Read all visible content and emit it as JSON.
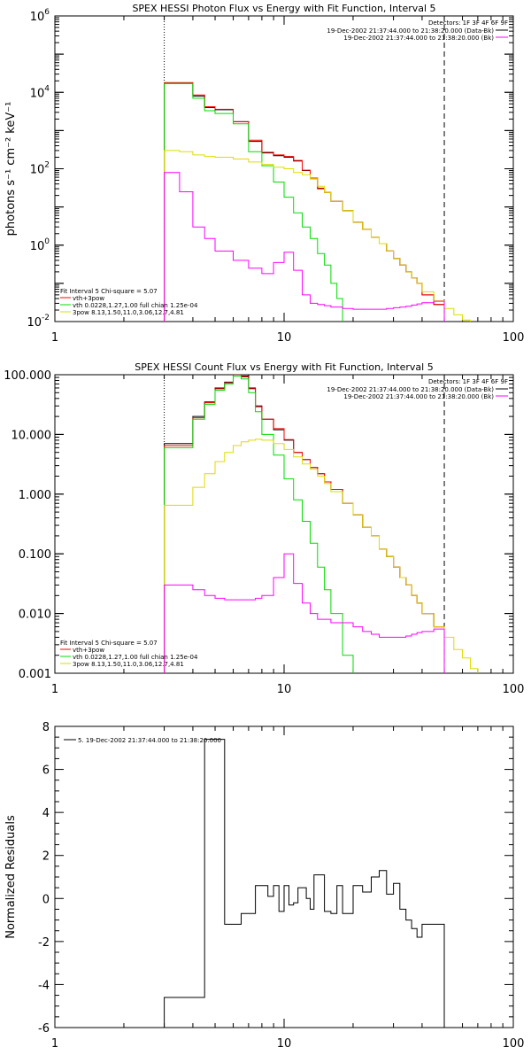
{
  "chart_data": [
    {
      "type": "line",
      "title": "SPEX HESSI Photon Flux vs Energy with Fit Function, Interval 5",
      "xlabel": "",
      "ylabel": "photons s⁻¹ cm⁻² keV⁻¹",
      "x_scale": "log",
      "y_scale": "log",
      "xlim": [
        1,
        100
      ],
      "ylim": [
        0.01,
        1000000
      ],
      "x_ticks": [
        "1",
        "10",
        "100"
      ],
      "y_ticks": [
        {
          "base": "10",
          "exp": "-2",
          "value": 0.01
        },
        {
          "base": "10",
          "exp": "0",
          "value": 1
        },
        {
          "base": "10",
          "exp": "2",
          "value": 100
        },
        {
          "base": "10",
          "exp": "4",
          "value": 10000
        },
        {
          "base": "10",
          "exp": "6",
          "value": 1000000
        }
      ],
      "legend_top": {
        "detectors": "Detectors: 1F 3F 4F 6F 9F",
        "entries": [
          {
            "label": "19-Dec-2002 21:37:44.000 to 21:38:20.000 (Data-Bk)",
            "color": "#000000"
          },
          {
            "label": "19-Dec-2002 21:37:44.000 to 21:38:20.000 (Bk)",
            "color": "#ff00ff"
          }
        ]
      },
      "legend_bottom": {
        "header": "Fit Interval  5    Chi-square = 5.07",
        "entries": [
          {
            "label": "vth+3pow",
            "color": "#ff0000"
          },
          {
            "label": "vth 0.0228,1.27,1.00  full chian 1.25e-04",
            "color": "#00dd00"
          },
          {
            "label": "3pow 8.13,1.50,11.0,3.06,12.7,4.81",
            "color": "#dddd00"
          }
        ]
      },
      "vlines": [
        {
          "x": 3,
          "style": "dotted"
        },
        {
          "x": 50,
          "style": "dashed"
        }
      ],
      "series": [
        {
          "color": "#000000",
          "style": "step",
          "edges": [
            3,
            3.5,
            4,
            4.5,
            5,
            6,
            7,
            8,
            9,
            10,
            11,
            12,
            13,
            14,
            15,
            16,
            18,
            20,
            22,
            24,
            26,
            28,
            30,
            32,
            34,
            36,
            38,
            40,
            45,
            50
          ],
          "values": [
            17000,
            17000,
            8000,
            4000,
            3500,
            1700,
            520,
            260,
            220,
            200,
            160,
            90,
            55,
            30,
            24,
            14,
            8,
            4,
            2.6,
            1.6,
            1.1,
            0.7,
            0.45,
            0.3,
            0.2,
            0.14,
            0.1,
            0.05,
            0.028
          ]
        },
        {
          "color": "#ff0000",
          "style": "step",
          "edges": [
            3,
            3.5,
            4,
            4.5,
            5,
            6,
            7,
            8,
            9,
            10,
            11,
            12,
            13,
            14,
            15,
            16,
            18,
            20,
            22,
            24,
            26,
            28,
            30,
            32,
            34,
            36,
            38,
            40,
            45,
            50
          ],
          "values": [
            18000,
            18000,
            8500,
            4200,
            3600,
            1700,
            560,
            270,
            230,
            210,
            165,
            92,
            57,
            31,
            24,
            14,
            8,
            4,
            2.6,
            1.6,
            1.1,
            0.7,
            0.45,
            0.3,
            0.2,
            0.14,
            0.1,
            0.05,
            0.028
          ]
        },
        {
          "color": "#00dd00",
          "style": "step",
          "edges": [
            3,
            3.5,
            4,
            4.5,
            5,
            6,
            7,
            8,
            9,
            10,
            11,
            12,
            13,
            14,
            15,
            16,
            17,
            18
          ],
          "values": [
            17000,
            17000,
            7000,
            3300,
            2800,
            1500,
            280,
            120,
            45,
            18,
            7,
            3,
            1.5,
            0.6,
            0.3,
            0.1,
            0.04
          ]
        },
        {
          "color": "#dddd00",
          "style": "step",
          "edges": [
            3,
            3.5,
            4,
            4.5,
            5,
            6,
            7,
            8,
            9,
            10,
            11,
            12,
            13,
            14,
            15,
            16,
            18,
            20,
            22,
            24,
            26,
            28,
            30,
            32,
            34,
            36,
            38,
            40,
            45,
            50,
            55,
            60,
            65
          ],
          "values": [
            300,
            280,
            230,
            210,
            200,
            180,
            150,
            130,
            110,
            100,
            80,
            70,
            55,
            35,
            24,
            14,
            8,
            4,
            2.6,
            1.6,
            1.1,
            0.7,
            0.45,
            0.3,
            0.2,
            0.14,
            0.1,
            0.06,
            0.035,
            0.022,
            0.015,
            0.011
          ]
        },
        {
          "color": "#ff00ff",
          "style": "step",
          "edges": [
            3,
            3.5,
            4,
            4.5,
            5,
            6,
            7,
            8,
            9,
            10,
            11,
            12,
            13,
            14,
            15,
            16,
            18,
            20,
            22,
            24,
            26,
            28,
            30,
            32,
            34,
            36,
            38,
            40,
            45,
            50
          ],
          "values": [
            80,
            25,
            3,
            1.5,
            0.7,
            0.4,
            0.25,
            0.18,
            0.35,
            0.65,
            0.22,
            0.05,
            0.03,
            0.028,
            0.026,
            0.024,
            0.022,
            0.021,
            0.021,
            0.021,
            0.021,
            0.022,
            0.023,
            0.024,
            0.025,
            0.027,
            0.029,
            0.031,
            0.034
          ]
        }
      ]
    },
    {
      "type": "line",
      "title": "SPEX HESSI Count Flux vs Energy with Fit Function, Interval 5",
      "xlabel": "",
      "ylabel": "",
      "x_scale": "log",
      "y_scale": "log",
      "xlim": [
        1,
        100
      ],
      "ylim": [
        0.001,
        100
      ],
      "x_ticks": [
        "1",
        "10",
        "100"
      ],
      "y_ticks": [
        {
          "label": "0.001",
          "value": 0.001
        },
        {
          "label": "0.010",
          "value": 0.01
        },
        {
          "label": "0.100",
          "value": 0.1
        },
        {
          "label": "1.000",
          "value": 1
        },
        {
          "label": "10.000",
          "value": 10
        },
        {
          "label": "100.000",
          "value": 100
        }
      ],
      "legend_top": {
        "detectors": "Detectors: 1F 3F 4F 6F 9F",
        "entries": [
          {
            "label": "19-Dec-2002 21:37:44.000 to 21:38:20.000 (Data-Bk)",
            "color": "#000000"
          },
          {
            "label": "19-Dec-2002 21:37:44.000 to 21:38:20.000 (Bk)",
            "color": "#ff00ff"
          }
        ]
      },
      "legend_bottom": {
        "header": "Fit Interval  5    Chi-square = 5.07",
        "entries": [
          {
            "label": "vth+3pow",
            "color": "#ff0000"
          },
          {
            "label": "vth 0.0228,1.27,1.00  full chian 1.25e-04",
            "color": "#00dd00"
          },
          {
            "label": "3pow 8.13,1.50,11.0,3.06,12.7,4.81",
            "color": "#dddd00"
          }
        ]
      },
      "vlines": [
        {
          "x": 3,
          "style": "dotted"
        },
        {
          "x": 50,
          "style": "dashed"
        }
      ],
      "series": [
        {
          "color": "#000000",
          "style": "step",
          "edges": [
            3,
            3.5,
            4,
            4.5,
            5,
            5.5,
            6,
            6.5,
            7,
            7.5,
            8,
            9,
            10,
            11,
            12,
            13,
            14,
            15,
            16,
            18,
            20,
            22,
            24,
            26,
            28,
            30,
            32,
            34,
            36,
            38,
            40,
            45,
            50
          ],
          "values": [
            7,
            7,
            20,
            35,
            60,
            75,
            105,
            95,
            60,
            30,
            18,
            12,
            8,
            5,
            3.8,
            2.8,
            2.2,
            1.6,
            1.2,
            0.7,
            0.45,
            0.28,
            0.2,
            0.12,
            0.09,
            0.06,
            0.04,
            0.03,
            0.02,
            0.015,
            0.01,
            0.006
          ]
        },
        {
          "color": "#ff0000",
          "style": "step",
          "edges": [
            3,
            3.5,
            4,
            4.5,
            5,
            5.5,
            6,
            6.5,
            7,
            7.5,
            8,
            9,
            10,
            11,
            12,
            13,
            14,
            15,
            16,
            18,
            20,
            22,
            24,
            26,
            28,
            30,
            32,
            34,
            36,
            38,
            40,
            45,
            50
          ],
          "values": [
            6.5,
            6.5,
            19,
            34,
            58,
            73,
            100,
            92,
            58,
            29,
            18,
            12.5,
            8.2,
            5,
            3.8,
            2.8,
            2.2,
            1.6,
            1.2,
            0.7,
            0.45,
            0.28,
            0.2,
            0.12,
            0.09,
            0.06,
            0.04,
            0.03,
            0.02,
            0.015,
            0.01,
            0.006
          ]
        },
        {
          "color": "#00dd00",
          "style": "step",
          "edges": [
            3,
            3.5,
            4,
            4.5,
            5,
            5.5,
            6,
            6.5,
            7,
            7.5,
            8,
            9,
            10,
            11,
            12,
            13,
            14,
            15,
            16,
            18,
            20
          ],
          "values": [
            6,
            6,
            18,
            32,
            55,
            70,
            95,
            85,
            50,
            24,
            10,
            4.5,
            1.8,
            0.8,
            0.35,
            0.15,
            0.06,
            0.025,
            0.01,
            0.002
          ]
        },
        {
          "color": "#dddd00",
          "style": "step",
          "edges": [
            3,
            3.5,
            4,
            4.5,
            5,
            5.5,
            6,
            6.5,
            7,
            7.5,
            8,
            9,
            10,
            11,
            12,
            13,
            14,
            15,
            16,
            18,
            20,
            22,
            24,
            26,
            28,
            30,
            32,
            34,
            36,
            38,
            40,
            45,
            50,
            55,
            60,
            65,
            70
          ],
          "values": [
            0.65,
            0.65,
            1.3,
            2.2,
            3.5,
            5,
            6.5,
            7.5,
            8,
            8.3,
            8,
            7,
            5.6,
            4.2,
            3.2,
            2.6,
            2,
            1.5,
            1.1,
            0.7,
            0.45,
            0.28,
            0.2,
            0.12,
            0.09,
            0.06,
            0.04,
            0.03,
            0.02,
            0.015,
            0.01,
            0.006,
            0.004,
            0.0025,
            0.0018,
            0.0012
          ]
        },
        {
          "color": "#ff00ff",
          "style": "step",
          "edges": [
            3,
            3.5,
            4,
            4.5,
            5,
            5.5,
            6,
            6.5,
            7,
            7.5,
            8,
            9,
            10,
            11,
            12,
            13,
            14,
            15,
            16,
            18,
            20,
            22,
            24,
            26,
            28,
            30,
            32,
            34,
            36,
            38,
            40,
            45,
            50
          ],
          "values": [
            0.03,
            0.03,
            0.025,
            0.02,
            0.018,
            0.017,
            0.017,
            0.017,
            0.017,
            0.018,
            0.02,
            0.04,
            0.1,
            0.032,
            0.015,
            0.01,
            0.008,
            0.008,
            0.007,
            0.007,
            0.006,
            0.005,
            0.0045,
            0.004,
            0.004,
            0.004,
            0.004,
            0.0042,
            0.0045,
            0.0048,
            0.005,
            0.0055
          ]
        }
      ]
    },
    {
      "type": "line",
      "title": "",
      "xlabel": "",
      "ylabel": "Normalized Residuals",
      "x_scale": "log",
      "y_scale": "linear",
      "xlim": [
        1,
        100
      ],
      "ylim": [
        -6,
        8
      ],
      "x_ticks": [
        "1",
        "10",
        "100"
      ],
      "y_ticks": [
        "-6",
        "-4",
        "-2",
        "0",
        "2",
        "4",
        "6",
        "8"
      ],
      "legend": {
        "label": "5. 19-Dec-2002 21:37:44.000 to 21:38:20.000",
        "color": "#000000"
      },
      "series": [
        {
          "color": "#000000",
          "style": "step",
          "edges": [
            3,
            3.5,
            4,
            4.5,
            5,
            5.5,
            6,
            6.5,
            7,
            7.5,
            8,
            8.5,
            9,
            9.5,
            10,
            10.5,
            11,
            11.5,
            12,
            12.5,
            13,
            13.5,
            14,
            15,
            16,
            17,
            18,
            20,
            22,
            24,
            26,
            28,
            30,
            32,
            34,
            36,
            38,
            40,
            45,
            50
          ],
          "values": [
            -4.6,
            -4.6,
            -4.6,
            7.4,
            7.4,
            -1.2,
            -1.2,
            -0.7,
            -0.7,
            0.6,
            0.6,
            0.1,
            0.6,
            -0.6,
            0.6,
            -0.3,
            -0.2,
            0.5,
            0.5,
            0.0,
            -0.5,
            1.1,
            1.1,
            -0.6,
            -0.7,
            0.6,
            -0.7,
            0.6,
            0.3,
            1.0,
            1.3,
            0.2,
            0.7,
            -0.5,
            -1.0,
            -1.4,
            -1.8,
            -1.2,
            -1.2
          ]
        }
      ]
    }
  ]
}
